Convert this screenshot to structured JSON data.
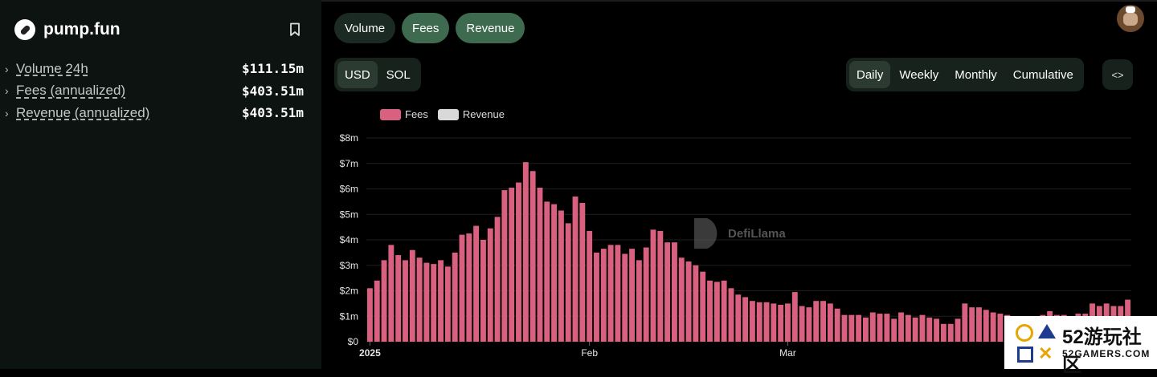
{
  "protocol": {
    "name": "pump.fun"
  },
  "metrics": [
    {
      "label": "Volume 24h",
      "value": "$111.15m"
    },
    {
      "label": "Fees (annualized)",
      "value": "$403.51m"
    },
    {
      "label": "Revenue (annualized)",
      "value": "$403.51m"
    }
  ],
  "metric_tabs": [
    {
      "label": "Volume",
      "active": false
    },
    {
      "label": "Fees",
      "active": true
    },
    {
      "label": "Revenue",
      "active": true
    }
  ],
  "currency_toggle": {
    "options": [
      "USD",
      "SOL"
    ],
    "selected": "USD"
  },
  "period_toggle": {
    "options": [
      "Daily",
      "Weekly",
      "Monthly",
      "Cumulative"
    ],
    "selected": "Daily"
  },
  "embed_icon": "code-icon",
  "watermark": {
    "brand": "DefiLlama",
    "site_text": "52游玩社区",
    "site_url": "52GAMERS.COM"
  },
  "colors": {
    "fees": "#d9617f",
    "revenue": "#d9d9d9",
    "accent": "#3e6a4f"
  },
  "chart_data": {
    "type": "bar",
    "legend": [
      {
        "name": "Fees",
        "color": "#d9617f"
      },
      {
        "name": "Revenue",
        "color": "#d9d9d9"
      }
    ],
    "y_ticks": [
      "$0",
      "$1m",
      "$2m",
      "$3m",
      "$4m",
      "$5m",
      "$6m",
      "$7m",
      "$8m"
    ],
    "ylim": [
      0,
      8
    ],
    "y_unit": "millions USD",
    "x_ticks": [
      {
        "label": "2025",
        "index": 0
      },
      {
        "label": "Feb",
        "index": 31
      },
      {
        "label": "Mar",
        "index": 59
      }
    ],
    "grid": true,
    "legend_position": "top-left",
    "series": [
      {
        "name": "Fees",
        "values": [
          2.1,
          2.4,
          3.2,
          3.8,
          3.4,
          3.2,
          3.6,
          3.3,
          3.1,
          3.05,
          3.2,
          2.95,
          3.5,
          4.2,
          4.25,
          4.55,
          4.0,
          4.45,
          4.9,
          5.95,
          6.05,
          6.25,
          7.05,
          6.7,
          6.05,
          5.5,
          5.4,
          5.15,
          4.65,
          5.7,
          5.45,
          4.35,
          3.5,
          3.65,
          3.8,
          3.8,
          3.45,
          3.65,
          3.2,
          3.7,
          4.4,
          4.35,
          3.9,
          3.9,
          3.3,
          3.15,
          3.0,
          2.75,
          2.4,
          2.35,
          2.4,
          2.1,
          1.85,
          1.75,
          1.6,
          1.55,
          1.55,
          1.5,
          1.45,
          1.5,
          1.95,
          1.4,
          1.35,
          1.6,
          1.6,
          1.5,
          1.3,
          1.05,
          1.05,
          1.05,
          0.95,
          1.15,
          1.1,
          1.1,
          0.9,
          1.15,
          1.05,
          0.95,
          1.05,
          0.95,
          0.9,
          0.7,
          0.7,
          0.9,
          1.5,
          1.35,
          1.35,
          1.25,
          1.15,
          1.1,
          1.05,
          1.0,
          0.95,
          0.95,
          0.95,
          1.05,
          1.2,
          1.05,
          1.05,
          1.0,
          1.1,
          1.1,
          1.5,
          1.4,
          1.5,
          1.4,
          1.4,
          1.65
        ]
      }
    ]
  }
}
